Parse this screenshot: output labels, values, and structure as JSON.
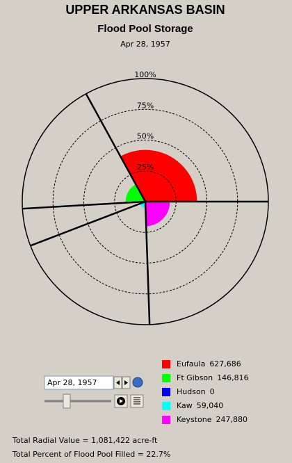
{
  "chart_data": {
    "type": "polar-area",
    "title": "UPPER ARKANSAS BASIN",
    "subtitle": "Flood Pool Storage",
    "date": "Apr 28, 1957",
    "categories": [
      "Eufaula",
      "Ft Gibson",
      "Hudson",
      "Kaw",
      "Keystone"
    ],
    "values": [
      42,
      16,
      0,
      5,
      20
    ],
    "storage": [
      627686,
      146816,
      0,
      59040,
      247880
    ],
    "storage_labels": [
      "627,686",
      "146,816",
      "0",
      "59,040",
      "247,880"
    ],
    "colors": [
      "#ff0000",
      "#00ff00",
      "#0000ff",
      "#00ffff",
      "#ff00ff"
    ],
    "rlim": [
      0,
      100
    ],
    "rticks": [
      {
        "value": 25,
        "label": "25%"
      },
      {
        "value": 50,
        "label": "50%"
      },
      {
        "value": 75,
        "label": "75%"
      },
      {
        "value": 100,
        "label": "100%"
      }
    ]
  },
  "controls": {
    "date": "Apr 28, 1957"
  },
  "footer": {
    "total_radial": "Total Radial Value =  1,081,422 acre-ft",
    "total_percent": "Total Percent of Flood Pool Filled =  22.7%"
  }
}
